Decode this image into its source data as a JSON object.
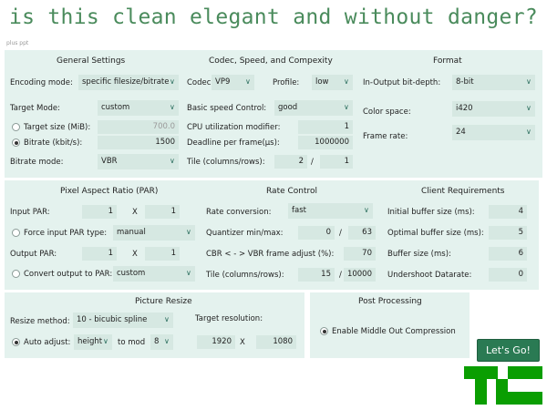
{
  "meme": {
    "title": "is this clean elegant and without danger?"
  },
  "top_strip": "plus ppt",
  "general": {
    "header": "General Settings",
    "encoding_mode": {
      "label": "Encoding mode:",
      "value": "specific filesize/bitrate"
    },
    "target_mode": {
      "label": "Target Mode:",
      "value": "custom"
    },
    "target_size": {
      "label": "Target size (MiB):",
      "value": "700.0"
    },
    "bitrate": {
      "label": "Bitrate (kbit/s):",
      "value": "1500"
    },
    "bitrate_mode": {
      "label": "Bitrate mode:",
      "value": "VBR"
    }
  },
  "codec": {
    "header": "Codec, Speed, and Compexity",
    "codec": {
      "label": "Codec:",
      "value": "VP9"
    },
    "profile": {
      "label": "Profile:",
      "value": "low"
    },
    "speed_control": {
      "label": "Basic speed Control:",
      "value": "good"
    },
    "cpu_mod": {
      "label": "CPU utilization modifier:",
      "value": "1"
    },
    "deadline": {
      "label": "Deadline per frame(µs):",
      "value": "1000000"
    },
    "tile": {
      "label": "Tile (columns/rows):",
      "cols": "2",
      "sep": "/",
      "rows": "1"
    }
  },
  "format": {
    "header": "Format",
    "bit_depth": {
      "label": "In-Output bit-depth:",
      "value": "8-bit"
    },
    "color_space": {
      "label": "Color space:",
      "value": "i420"
    },
    "frame_rate": {
      "label": "Frame rate:",
      "value": "24"
    }
  },
  "par": {
    "header": "Pixel Aspect Ratio (PAR)",
    "input": {
      "label": "Input PAR:",
      "a": "1",
      "x": "X",
      "b": "1"
    },
    "force": {
      "label": "Force input PAR type:",
      "value": "manual"
    },
    "output": {
      "label": "Output PAR:",
      "a": "1",
      "x": "X",
      "b": "1"
    },
    "convert": {
      "label": "Convert output to PAR:",
      "value": "custom"
    }
  },
  "rate": {
    "header": "Rate Control",
    "conversion": {
      "label": "Rate conversion:",
      "value": "fast"
    },
    "quantizer": {
      "label": "Quantizer min/max:",
      "min": "0",
      "sep": "/",
      "max": "63"
    },
    "cbr_vbr": {
      "label": "CBR < - > VBR frame adjust (%):",
      "value": "70"
    },
    "tile": {
      "label": "Tile (columns/rows):",
      "cols": "15",
      "sep": "/",
      "rows": "10000"
    }
  },
  "client": {
    "header": "Client Requirements",
    "initial_buffer": {
      "label": "Initial buffer size (ms):",
      "value": "4"
    },
    "optimal_buffer": {
      "label": "Optimal buffer size (ms):",
      "value": "5"
    },
    "buffer_size": {
      "label": "Buffer size (ms):",
      "value": "6"
    },
    "undershoot": {
      "label": "Undershoot Datarate:",
      "value": "0"
    }
  },
  "resize": {
    "header": "Picture Resize",
    "method": {
      "label": "Resize method:",
      "value": "10 - bicubic spline"
    },
    "target_label": "Target resolution:",
    "auto_adjust": {
      "label": "Auto adjust:",
      "value": "height"
    },
    "mod": {
      "label": "to mod",
      "value": "8"
    },
    "width": "1920",
    "x": "X",
    "height": "1080"
  },
  "post": {
    "header": "Post Processing",
    "middle_out": {
      "label": "Enable Middle Out Compression"
    }
  },
  "go_button": "Let's Go!",
  "colors": {
    "panel": "#e4f2ee",
    "field": "#d6e8e2",
    "title_green": "#4a8b5c",
    "button": "#2a7a53",
    "logo": "#0a9e01"
  },
  "icons": [
    "chevron-down-icon",
    "radio-icon",
    "techcrunch-logo"
  ]
}
